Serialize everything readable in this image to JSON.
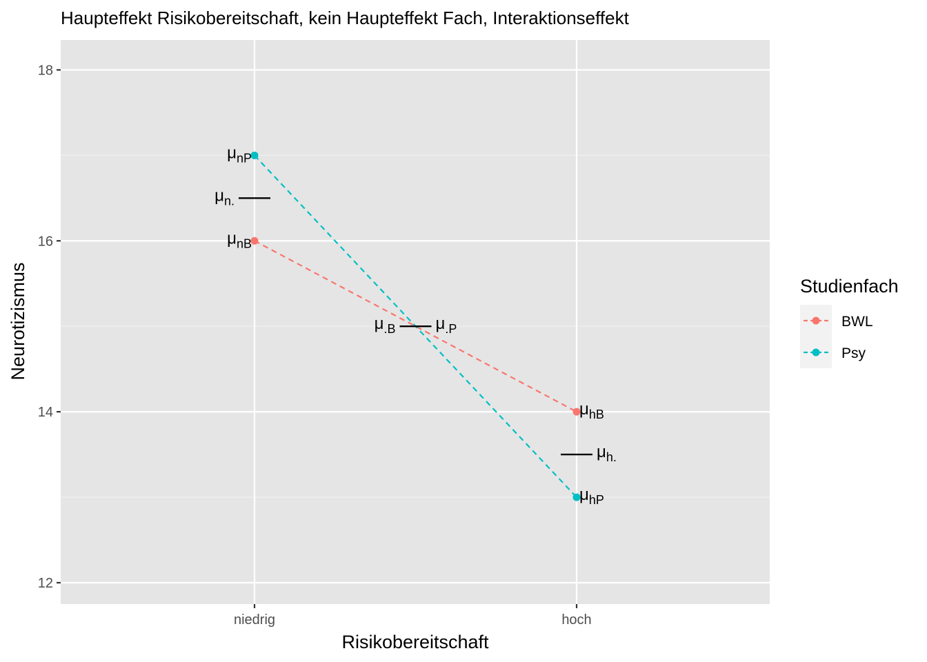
{
  "chart_data": {
    "type": "line",
    "title": "Haupteffekt Risikobereitschaft, kein Haupteffekt Fach, Interaktionseffekt",
    "xlabel": "Risikobereitschaft",
    "ylabel": "Neurotizismus",
    "categories": [
      "niedrig",
      "hoch"
    ],
    "ylim": [
      11.75,
      18.35
    ],
    "yticks": [
      "12",
      "14",
      "16",
      "18"
    ],
    "grid": true,
    "legend": {
      "title": "Studienfach",
      "placement": "right"
    },
    "series": [
      {
        "name": "BWL",
        "values": [
          16,
          14
        ],
        "color": "#F8766D",
        "linestyle": "dashed",
        "point_labels": [
          "nB",
          "hB"
        ]
      },
      {
        "name": "Psy",
        "values": [
          17,
          13
        ],
        "color": "#00BFC4",
        "linestyle": "dashed",
        "point_labels": [
          "nP",
          "hP"
        ]
      }
    ],
    "mean_markers": [
      {
        "label": "n.",
        "x": "niedrig",
        "y": 16.5
      },
      {
        "label": "h.",
        "x": "hoch",
        "y": 13.5
      },
      {
        "label": ".B",
        "x": "between",
        "y": 15
      },
      {
        "label": ".P",
        "x": "between",
        "y": 15
      }
    ],
    "mu_symbol": "μ"
  }
}
